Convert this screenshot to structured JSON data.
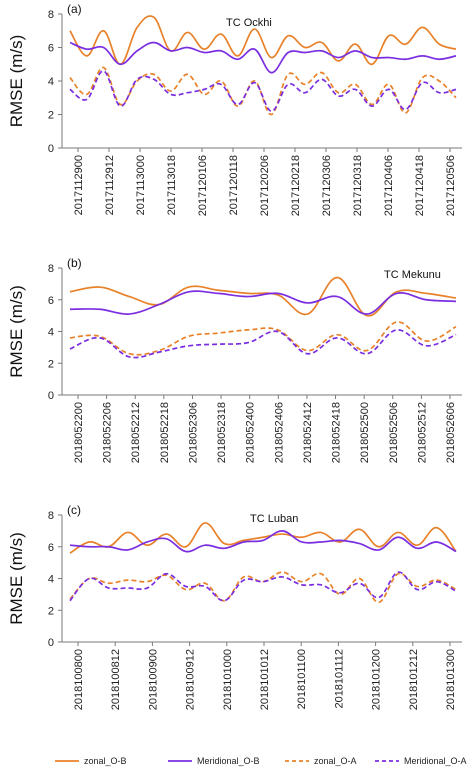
{
  "colors": {
    "zonal": "#e8822a",
    "meridional": "#7a2ee0",
    "axis": "#7a7a7a"
  },
  "legend": [
    {
      "label": "zonal_O-B",
      "color": "#e8822a",
      "dashed": false
    },
    {
      "label": "Meridional_O-B",
      "color": "#7a2ee0",
      "dashed": false
    },
    {
      "label": "zonal_O-A",
      "color": "#e8822a",
      "dashed": true
    },
    {
      "label": "Meridional_O-A",
      "color": "#7a2ee0",
      "dashed": true
    }
  ],
  "chart_data": [
    {
      "type": "line",
      "panel_label": "(a)",
      "title": "TC Ockhi",
      "ylabel": "RMSE (m/s)",
      "ylim": [
        0,
        8
      ],
      "yticks": [
        0,
        2,
        4,
        6,
        8
      ],
      "xticks": [
        "2017112900",
        "2017112912",
        "2017113000",
        "2017113018",
        "2017120106",
        "2017120118",
        "2017120206",
        "2017120218",
        "2017120306",
        "2017120318",
        "2017120406",
        "2017120418",
        "2017120506"
      ],
      "series": [
        {
          "name": "zonal_O-B",
          "values": [
            7.0,
            5.5,
            7.0,
            5.0,
            7.2,
            7.8,
            5.8,
            6.9,
            5.9,
            6.8,
            5.5,
            7.1,
            5.4,
            6.7,
            6.0,
            6.3,
            5.2,
            6.2,
            5.0,
            6.7,
            6.2,
            7.2,
            6.2,
            5.9
          ]
        },
        {
          "name": "Meridional_O-B",
          "values": [
            6.3,
            5.9,
            6.0,
            5.0,
            5.8,
            6.3,
            5.8,
            6.0,
            5.7,
            5.8,
            5.3,
            5.9,
            4.5,
            5.7,
            5.7,
            5.8,
            5.4,
            5.8,
            5.4,
            5.4,
            5.3,
            5.5,
            5.3,
            5.5
          ]
        },
        {
          "name": "zonal_O-A",
          "values": [
            4.2,
            3.2,
            4.8,
            2.6,
            4.0,
            4.4,
            3.4,
            4.4,
            3.2,
            4.0,
            2.5,
            4.0,
            2.0,
            4.4,
            3.8,
            4.5,
            3.3,
            3.8,
            2.6,
            3.8,
            2.1,
            4.2,
            4.0,
            3.0
          ]
        },
        {
          "name": "Meridional_O-A",
          "values": [
            3.5,
            2.9,
            4.6,
            2.5,
            4.1,
            4.1,
            3.2,
            3.3,
            3.5,
            3.8,
            2.6,
            3.9,
            2.2,
            3.8,
            3.3,
            4.1,
            3.1,
            3.5,
            2.5,
            3.5,
            2.3,
            3.9,
            3.3,
            3.5
          ]
        }
      ]
    },
    {
      "type": "line",
      "panel_label": "(b)",
      "title": "TC Mekunu",
      "ylabel": "RMSE (m/s)",
      "ylim": [
        0,
        8
      ],
      "yticks": [
        0,
        2,
        4,
        6,
        8
      ],
      "xticks": [
        "2018052200",
        "2018052206",
        "2018052212",
        "2018052218",
        "2018052306",
        "2018052318",
        "2018052400",
        "2018052406",
        "2018052412",
        "2018052418",
        "2018052500",
        "2018052506",
        "2018052512",
        "2018052606"
      ],
      "series": [
        {
          "name": "zonal_O-B",
          "values": [
            6.5,
            6.8,
            6.2,
            5.7,
            6.8,
            6.6,
            6.4,
            6.3,
            5.1,
            7.4,
            5.0,
            6.5,
            6.4,
            6.1
          ]
        },
        {
          "name": "Meridional_O-B",
          "values": [
            5.4,
            5.4,
            5.1,
            5.7,
            6.5,
            6.4,
            6.2,
            6.4,
            5.8,
            6.2,
            5.1,
            6.4,
            6.0,
            5.9
          ]
        },
        {
          "name": "zonal_O-A",
          "values": [
            3.6,
            3.7,
            2.6,
            2.8,
            3.7,
            3.9,
            4.1,
            4.1,
            2.8,
            3.8,
            2.8,
            4.6,
            3.4,
            4.3
          ]
        },
        {
          "name": "Meridional_O-A",
          "values": [
            2.9,
            3.6,
            2.4,
            2.7,
            3.1,
            3.2,
            3.3,
            4.0,
            2.6,
            3.6,
            2.6,
            4.1,
            3.1,
            3.8
          ]
        }
      ]
    },
    {
      "type": "line",
      "panel_label": "(c)",
      "title": "TC Luban",
      "ylabel": "RMSE (m/s)",
      "ylim": [
        0,
        8
      ],
      "yticks": [
        0,
        2,
        4,
        6,
        8
      ],
      "xticks": [
        "2018100800",
        "2018100812",
        "2018100900",
        "2018100912",
        "2018101000",
        "2018101012",
        "2018101100",
        "2018101112",
        "2018101200",
        "2018101212",
        "2018101300"
      ],
      "series": [
        {
          "name": "zonal_O-B",
          "values": [
            5.6,
            6.3,
            6.0,
            6.9,
            6.1,
            6.8,
            6.0,
            7.5,
            6.2,
            6.4,
            6.6,
            6.8,
            6.6,
            6.9,
            6.3,
            7.1,
            6.0,
            6.9,
            6.1,
            7.2,
            5.7
          ]
        },
        {
          "name": "Meridional_O-B",
          "values": [
            6.1,
            6.0,
            6.0,
            5.8,
            6.3,
            6.5,
            5.7,
            6.1,
            5.9,
            6.3,
            6.4,
            7.0,
            6.3,
            6.3,
            6.4,
            6.2,
            5.8,
            6.6,
            5.9,
            6.3,
            5.7
          ]
        },
        {
          "name": "zonal_O-A",
          "values": [
            2.7,
            4.0,
            3.7,
            3.9,
            3.8,
            4.2,
            3.3,
            3.7,
            2.6,
            4.1,
            3.8,
            4.4,
            3.8,
            4.3,
            3.0,
            4.0,
            2.5,
            4.3,
            3.5,
            3.9,
            3.3
          ]
        },
        {
          "name": "Meridional_O-A",
          "values": [
            2.6,
            4.0,
            3.4,
            3.4,
            3.4,
            4.3,
            3.5,
            3.5,
            2.6,
            3.9,
            3.8,
            4.1,
            3.6,
            3.6,
            3.1,
            3.7,
            2.8,
            4.4,
            3.3,
            3.8,
            3.2
          ]
        }
      ]
    }
  ]
}
